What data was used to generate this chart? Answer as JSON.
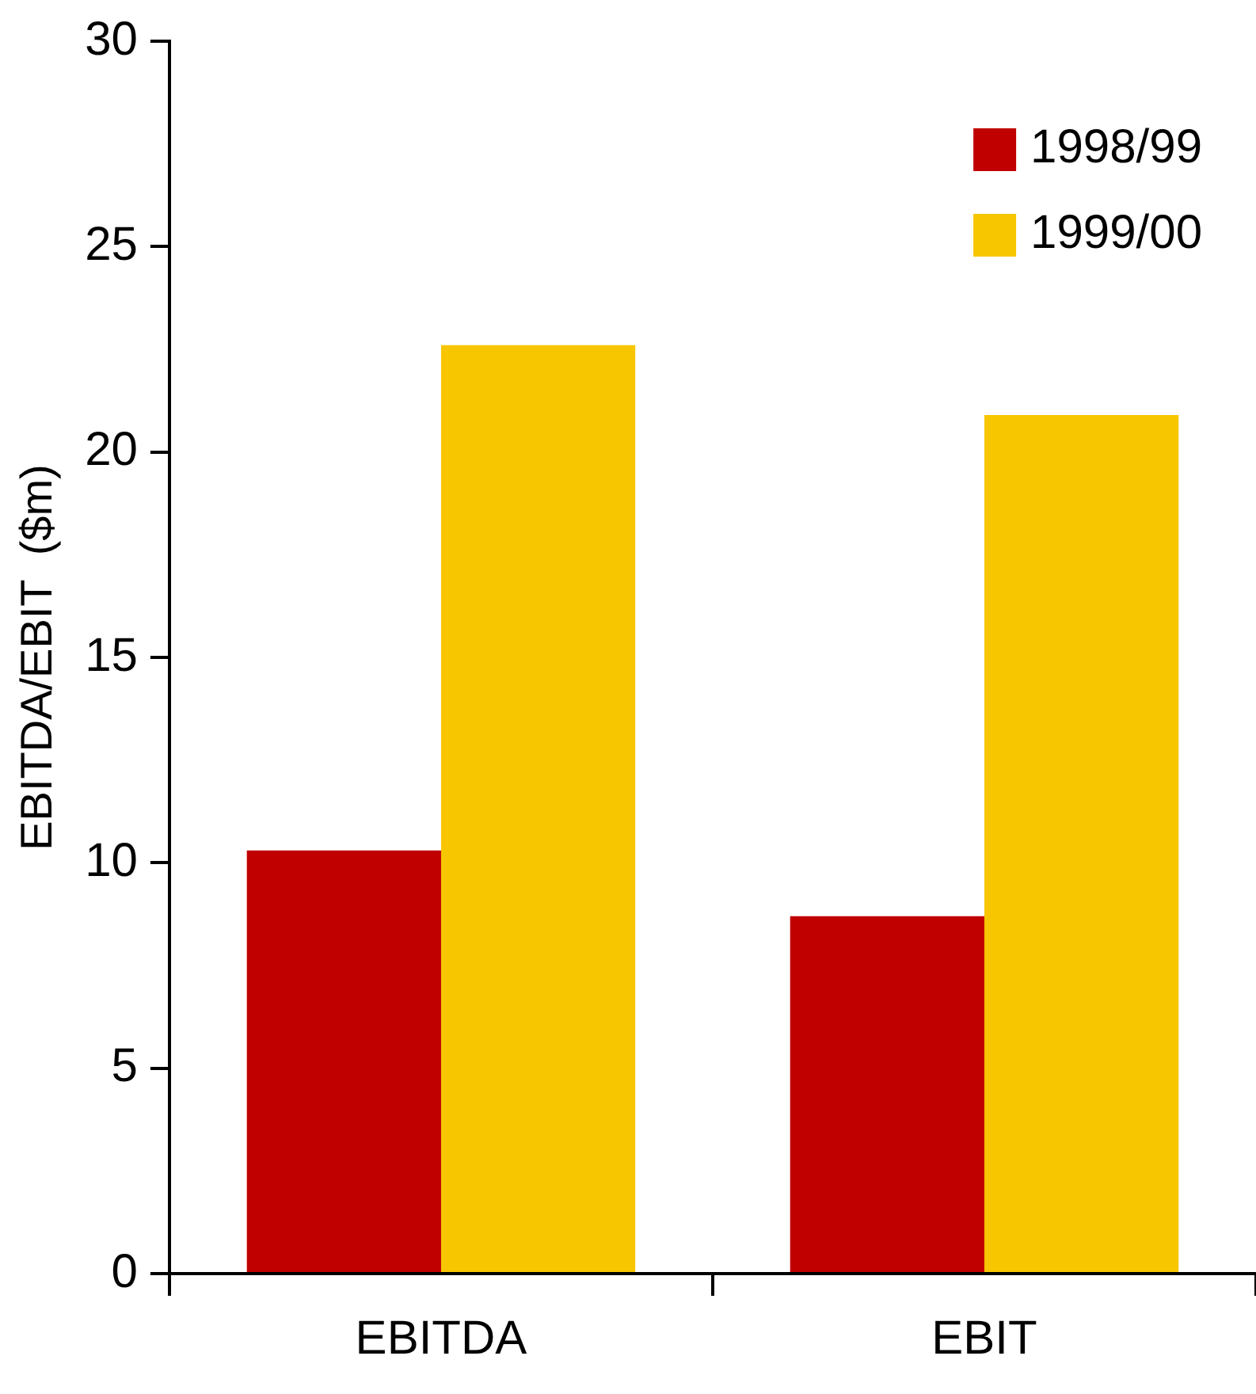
{
  "chart_data": {
    "type": "bar",
    "ylabel": "EBITDA/EBIT  ($m)",
    "categories": [
      "EBITDA",
      "EBIT"
    ],
    "series": [
      {
        "name": "1998/99",
        "color": "#c00000",
        "values": [
          10.3,
          8.7
        ]
      },
      {
        "name": "1999/00",
        "color": "#f7c600",
        "values": [
          22.6,
          20.9
        ]
      }
    ],
    "ylim": [
      0,
      30
    ],
    "yticks": [
      0,
      5,
      10,
      15,
      20,
      25,
      30
    ],
    "grid": false,
    "legend": "top right"
  }
}
